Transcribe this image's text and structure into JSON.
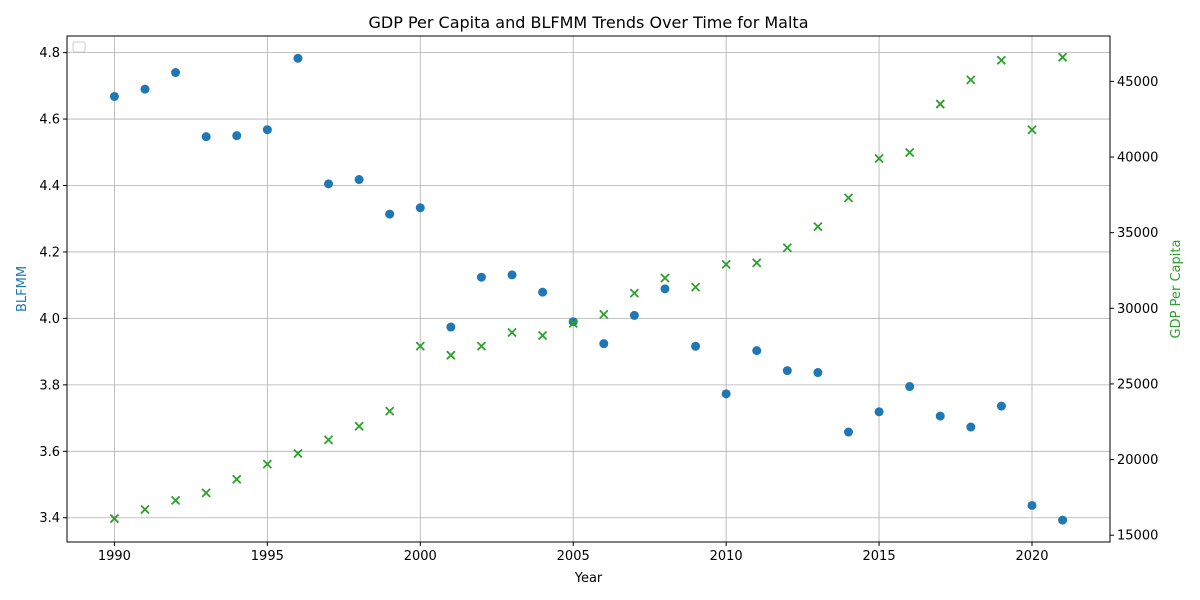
{
  "chart_data": {
    "type": "scatter",
    "title": "GDP Per Capita and BLFMM Trends Over Time for Malta",
    "xlabel": "Year",
    "ylabel_left": "BLFMM",
    "ylabel_right": "GDP Per Capita",
    "xlim": [
      1988.45,
      2022.55
    ],
    "ylim_left": [
      3.327,
      4.85
    ],
    "ylim_right": [
      14550,
      48000
    ],
    "x_ticks": [
      1990,
      1995,
      2000,
      2005,
      2010,
      2015,
      2020
    ],
    "y_ticks_left": [
      3.4,
      3.6,
      3.8,
      4.0,
      4.2,
      4.4,
      4.6,
      4.8
    ],
    "y_ticks_right": [
      15000,
      20000,
      25000,
      30000,
      35000,
      40000,
      45000
    ],
    "grid": true,
    "legend": "top-left (empty)",
    "colors": {
      "blfmm": "#1f77b4",
      "gdp": "#2ca02c",
      "grid": "#b0b0b0"
    },
    "x": [
      1990,
      1991,
      1992,
      1993,
      1994,
      1995,
      1996,
      1997,
      1998,
      1999,
      2000,
      2001,
      2002,
      2003,
      2004,
      2005,
      2006,
      2007,
      2008,
      2009,
      2010,
      2011,
      2012,
      2013,
      2014,
      2015,
      2016,
      2017,
      2018,
      2019,
      2020,
      2021
    ],
    "series": [
      {
        "axis": "left",
        "marker": "circle",
        "color": "#1f77b4",
        "values": [
          4.668,
          4.69,
          4.74,
          4.547,
          4.55,
          4.568,
          4.783,
          4.405,
          4.418,
          4.314,
          4.333,
          3.974,
          4.124,
          4.131,
          4.079,
          3.99,
          3.924,
          4.009,
          4.089,
          3.916,
          3.773,
          3.903,
          3.843,
          3.837,
          3.658,
          3.719,
          3.795,
          3.706,
          3.673,
          3.736,
          3.437,
          3.393
        ]
      },
      {
        "axis": "right",
        "marker": "x",
        "color": "#2ca02c",
        "values": [
          16100,
          16700,
          17300,
          17800,
          18700,
          19700,
          20400,
          21300,
          22200,
          23200,
          27500,
          26900,
          27500,
          28400,
          28200,
          29000,
          29600,
          31000,
          32000,
          31400,
          32900,
          33000,
          34000,
          35400,
          37300,
          39900,
          40300,
          43500,
          45100,
          46400,
          41800,
          46600
        ]
      }
    ]
  }
}
